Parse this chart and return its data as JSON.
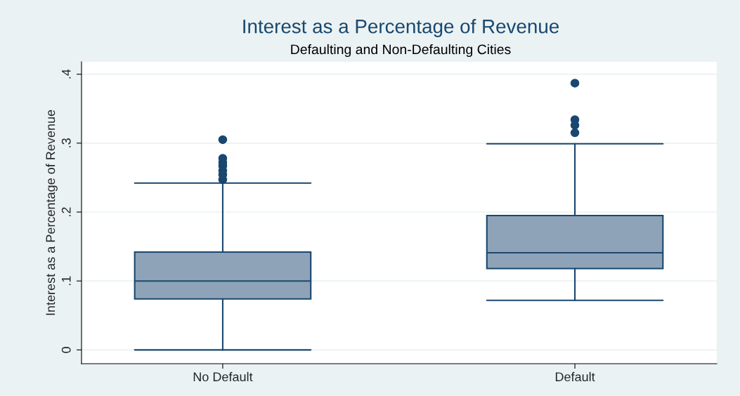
{
  "chart_data": {
    "type": "box",
    "title": "Interest as a Percentage of Revenue",
    "subtitle": "Defaulting and Non-Defaulting Cities",
    "ylabel": "Interest as a Percentage of Revenue",
    "categories": [
      "No Default",
      "Default"
    ],
    "boxes": [
      {
        "low": 0,
        "q1": 0.074,
        "median": 0.1,
        "q3": 0.142,
        "high": 0.242,
        "outliers": [
          0.247,
          0.254,
          0.26,
          0.267,
          0.272,
          0.278,
          0.305
        ]
      },
      {
        "low": 0.072,
        "q1": 0.118,
        "median": 0.141,
        "q3": 0.195,
        "high": 0.299,
        "outliers": [
          0.315,
          0.326,
          0.334,
          0.387
        ]
      }
    ],
    "color": "#8ea3b8",
    "ylim": [
      -0.02,
      0.418
    ],
    "yticks": [
      {
        "value": 0,
        "label": "0"
      },
      {
        "value": 0.1,
        "label": ".1"
      },
      {
        "value": 0.2,
        "label": ".2"
      },
      {
        "value": 0.3,
        "label": ".3"
      },
      {
        "value": 0.4,
        "label": ".4"
      }
    ],
    "grid": "y"
  }
}
